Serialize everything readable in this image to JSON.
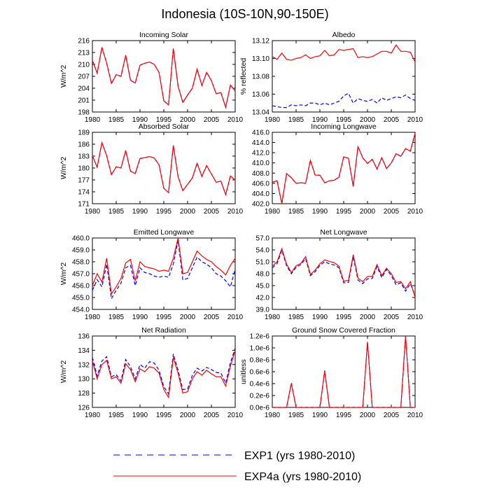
{
  "figure": {
    "title": "Indonesia (10S-10N,90-150E)",
    "legend": [
      {
        "label": "EXP1 (yrs 1980-2010)",
        "color": "#0000ff",
        "dash": true
      },
      {
        "label": "EXP4a (yrs 1980-2010)",
        "color": "#ff0000",
        "dash": false
      }
    ]
  },
  "chart_data": [
    {
      "type": "line",
      "title": "Incoming Solar",
      "ylabel": "W/m^2",
      "ylim": [
        198,
        216
      ],
      "yticks": [
        "198",
        "201",
        "204",
        "207",
        "210",
        "213",
        "216"
      ],
      "xlim": [
        1980,
        2010
      ],
      "xticks": [
        "1980",
        "1985",
        "1990",
        "1995",
        "2000",
        "2005",
        "2010"
      ],
      "x": [
        1980,
        1981,
        1982,
        1983,
        1984,
        1985,
        1986,
        1987,
        1988,
        1989,
        1990,
        1991,
        1992,
        1993,
        1994,
        1995,
        1996,
        1997,
        1998,
        1999,
        2000,
        2001,
        2002,
        2003,
        2004,
        2005,
        2006,
        2007,
        2008,
        2009,
        2010
      ],
      "series": [
        {
          "name": "EXP1",
          "values": [
            211.0,
            207.8,
            214.3,
            210.3,
            205.2,
            207.4,
            207.0,
            212.3,
            206.0,
            205.3,
            209.8,
            210.3,
            210.6,
            210.0,
            208.0,
            200.8,
            199.8,
            214.0,
            204.5,
            200.4,
            202.3,
            204.0,
            208.8,
            204.7,
            208.0,
            205.9,
            202.6,
            202.9,
            199.2,
            204.8,
            203.3
          ]
        },
        {
          "name": "EXP4a",
          "values": [
            211.0,
            207.8,
            214.3,
            210.3,
            205.2,
            207.4,
            207.0,
            212.3,
            206.0,
            205.3,
            209.8,
            210.3,
            210.6,
            210.0,
            208.0,
            200.8,
            199.8,
            214.0,
            204.5,
            200.4,
            202.3,
            204.0,
            208.8,
            204.7,
            208.0,
            205.9,
            202.6,
            202.9,
            199.2,
            204.8,
            203.3
          ]
        }
      ]
    },
    {
      "type": "line",
      "title": "Albedo",
      "ylabel": "% reflected",
      "ylim": [
        13.04,
        13.12
      ],
      "yticks": [
        "13.04",
        "13.06",
        "13.08",
        "13.10",
        "13.12"
      ],
      "xlim": [
        1980,
        2010
      ],
      "xticks": [
        "1980",
        "1985",
        "1990",
        "1995",
        "2000",
        "2005",
        "2010"
      ],
      "x": [
        1980,
        1981,
        1982,
        1983,
        1984,
        1985,
        1986,
        1987,
        1988,
        1989,
        1990,
        1991,
        1992,
        1993,
        1994,
        1995,
        1996,
        1997,
        1998,
        1999,
        2000,
        2001,
        2002,
        2003,
        2004,
        2005,
        2006,
        2007,
        2008,
        2009,
        2010
      ],
      "series": [
        {
          "name": "EXP1",
          "values": [
            13.047,
            13.046,
            13.045,
            13.045,
            13.048,
            13.047,
            13.048,
            13.047,
            13.05,
            13.05,
            13.048,
            13.05,
            13.048,
            13.05,
            13.052,
            13.058,
            13.061,
            13.05,
            13.055,
            13.053,
            13.052,
            13.054,
            13.05,
            13.056,
            13.053,
            13.055,
            13.057,
            13.056,
            13.059,
            13.055,
            13.053
          ]
        },
        {
          "name": "EXP4a",
          "values": [
            13.102,
            13.099,
            13.106,
            13.099,
            13.098,
            13.1,
            13.101,
            13.104,
            13.1,
            13.102,
            13.103,
            13.109,
            13.103,
            13.104,
            13.11,
            13.109,
            13.11,
            13.111,
            13.101,
            13.102,
            13.101,
            13.102,
            13.105,
            13.108,
            13.108,
            13.106,
            13.115,
            13.108,
            13.108,
            13.107,
            13.096
          ]
        }
      ]
    },
    {
      "type": "line",
      "title": "Absorbed Solar",
      "ylabel": "W/m^2",
      "ylim": [
        171,
        189
      ],
      "yticks": [
        "171",
        "174",
        "177",
        "180",
        "183",
        "186",
        "189"
      ],
      "xlim": [
        1980,
        2010
      ],
      "xticks": [
        "1980",
        "1985",
        "1990",
        "1995",
        "2000",
        "2005",
        "2010"
      ],
      "x": [
        1980,
        1981,
        1982,
        1983,
        1984,
        1985,
        1986,
        1987,
        1988,
        1989,
        1990,
        1991,
        1992,
        1993,
        1994,
        1995,
        1996,
        1997,
        1998,
        1999,
        2000,
        2001,
        2002,
        2003,
        2004,
        2005,
        2006,
        2007,
        2008,
        2009,
        2010
      ],
      "series": [
        {
          "name": "EXP1",
          "values": [
            183.1,
            180.2,
            186.4,
            183.1,
            178.3,
            180.3,
            180.0,
            184.4,
            179.2,
            178.6,
            182.4,
            182.6,
            182.9,
            182.5,
            180.8,
            174.9,
            173.8,
            185.7,
            177.8,
            174.3,
            175.9,
            177.5,
            181.2,
            177.9,
            180.6,
            178.5,
            176.4,
            176.7,
            173.3,
            178.0,
            176.9
          ]
        },
        {
          "name": "EXP4a",
          "values": [
            183.1,
            180.2,
            186.4,
            183.1,
            178.3,
            180.3,
            180.0,
            184.4,
            179.2,
            178.6,
            182.4,
            182.6,
            182.9,
            182.5,
            180.8,
            174.9,
            173.8,
            185.7,
            177.8,
            174.3,
            175.9,
            177.5,
            181.2,
            177.9,
            180.6,
            178.5,
            176.4,
            176.7,
            173.3,
            178.0,
            176.9
          ]
        }
      ]
    },
    {
      "type": "line",
      "title": "Incoming Longwave",
      "ylabel": "",
      "ylim": [
        402,
        416
      ],
      "yticks": [
        "402.0",
        "404.0",
        "406.0",
        "408.0",
        "410.0",
        "412.0",
        "414.0",
        "416.0"
      ],
      "xlim": [
        1980,
        2010
      ],
      "xticks": [
        "1980",
        "1985",
        "1990",
        "1995",
        "2000",
        "2005",
        "2010"
      ],
      "x": [
        1980,
        1981,
        1982,
        1983,
        1984,
        1985,
        1986,
        1987,
        1988,
        1989,
        1990,
        1991,
        1992,
        1993,
        1994,
        1995,
        1996,
        1997,
        1998,
        1999,
        2000,
        2001,
        2002,
        2003,
        2004,
        2005,
        2006,
        2007,
        2008,
        2009,
        2010
      ],
      "series": [
        {
          "name": "EXP1",
          "values": [
            406.2,
            406.5,
            402.0,
            407.9,
            407.1,
            406.0,
            406.1,
            406.0,
            410.5,
            407.6,
            407.6,
            406.1,
            406.5,
            406.6,
            407.2,
            411.2,
            410.9,
            405.4,
            413.2,
            411.0,
            409.9,
            410.7,
            408.8,
            411.0,
            408.9,
            410.0,
            411.8,
            411.3,
            412.8,
            412.3,
            415.8
          ]
        },
        {
          "name": "EXP4a",
          "values": [
            406.2,
            406.5,
            402.0,
            407.9,
            407.1,
            406.0,
            406.1,
            406.0,
            410.5,
            407.6,
            407.6,
            406.1,
            406.5,
            406.6,
            407.2,
            411.2,
            410.9,
            405.4,
            413.2,
            411.0,
            409.9,
            410.7,
            408.8,
            411.0,
            408.9,
            410.0,
            411.8,
            411.3,
            412.8,
            412.3,
            415.8
          ]
        }
      ]
    },
    {
      "type": "line",
      "title": "Emitted Longwave",
      "ylabel": "W/m^2",
      "ylim": [
        454,
        460
      ],
      "yticks": [
        "454.0",
        "455.0",
        "456.0",
        "457.0",
        "458.0",
        "459.0",
        "460.0"
      ],
      "xlim": [
        1980,
        2010
      ],
      "xticks": [
        "1980",
        "1985",
        "1990",
        "1995",
        "2000",
        "2005",
        "2010"
      ],
      "x": [
        1980,
        1981,
        1982,
        1983,
        1984,
        1985,
        1986,
        1987,
        1988,
        1989,
        1990,
        1991,
        1992,
        1993,
        1994,
        1995,
        1996,
        1997,
        1998,
        1999,
        2000,
        2001,
        2002,
        2003,
        2004,
        2005,
        2006,
        2007,
        2008,
        2009,
        2010
      ],
      "series": [
        {
          "name": "EXP1",
          "values": [
            455.6,
            456.5,
            455.9,
            457.8,
            454.9,
            455.6,
            456.2,
            457.5,
            457.7,
            456.0,
            457.5,
            457.1,
            457.0,
            456.8,
            456.7,
            456.8,
            456.7,
            457.8,
            459.8,
            456.5,
            456.6,
            457.5,
            458.4,
            458.0,
            457.8,
            457.5,
            457.0,
            456.8,
            456.4,
            455.9,
            457.4
          ]
        },
        {
          "name": "EXP4a",
          "values": [
            456.0,
            457.0,
            456.3,
            458.3,
            455.3,
            455.9,
            456.6,
            457.9,
            458.2,
            456.4,
            458.0,
            457.6,
            457.5,
            457.4,
            457.2,
            457.3,
            457.2,
            458.3,
            460.0,
            457.0,
            457.1,
            458.0,
            458.9,
            458.5,
            458.2,
            458.0,
            457.6,
            457.3,
            456.9,
            457.7,
            458.3
          ]
        }
      ]
    },
    {
      "type": "line",
      "title": "Net Longwave",
      "ylabel": "",
      "ylim": [
        39,
        57
      ],
      "yticks": [
        "39.0",
        "42.0",
        "45.0",
        "48.0",
        "51.0",
        "54.0",
        "57.0"
      ],
      "xlim": [
        1980,
        2010
      ],
      "xticks": [
        "1980",
        "1985",
        "1990",
        "1995",
        "2000",
        "2005",
        "2010"
      ],
      "x": [
        1980,
        1981,
        1982,
        1983,
        1984,
        1985,
        1986,
        1987,
        1988,
        1989,
        1990,
        1991,
        1992,
        1993,
        1994,
        1995,
        1996,
        1997,
        1998,
        1999,
        2000,
        2001,
        2002,
        2003,
        2004,
        2005,
        2006,
        2007,
        2008,
        2009,
        2010
      ],
      "series": [
        {
          "name": "EXP1",
          "values": [
            49.5,
            50.5,
            53.9,
            50.0,
            48.0,
            49.6,
            50.3,
            51.8,
            47.5,
            48.5,
            50.1,
            51.0,
            50.5,
            50.2,
            49.5,
            45.7,
            45.8,
            52.3,
            46.4,
            45.5,
            46.7,
            46.8,
            49.8,
            47.0,
            49.1,
            47.5,
            45.2,
            45.7,
            43.6,
            45.5,
            42.5
          ]
        },
        {
          "name": "EXP4a",
          "values": [
            49.9,
            51.0,
            54.3,
            50.4,
            48.3,
            50.0,
            50.6,
            52.3,
            47.8,
            48.9,
            50.5,
            51.5,
            51.1,
            50.8,
            49.9,
            46.1,
            46.3,
            52.8,
            46.9,
            46.0,
            47.3,
            47.3,
            50.3,
            47.5,
            49.4,
            48.0,
            45.8,
            46.0,
            44.2,
            46.0,
            42.0
          ]
        }
      ]
    },
    {
      "type": "line",
      "title": "Net Radiation",
      "ylabel": "W/m^2",
      "ylim": [
        126,
        136
      ],
      "yticks": [
        "126",
        "128",
        "130",
        "132",
        "134",
        "136"
      ],
      "xlim": [
        1980,
        2010
      ],
      "xticks": [
        "1980",
        "1985",
        "1990",
        "1995",
        "2000",
        "2005",
        "2010"
      ],
      "x": [
        1980,
        1981,
        1982,
        1983,
        1984,
        1985,
        1986,
        1987,
        1988,
        1989,
        1990,
        1991,
        1992,
        1993,
        1994,
        1995,
        1996,
        1997,
        1998,
        1999,
        2000,
        2001,
        2002,
        2003,
        2004,
        2005,
        2006,
        2007,
        2008,
        2009,
        2010
      ],
      "series": [
        {
          "name": "EXP1",
          "values": [
            133.0,
            130.4,
            132.5,
            133.1,
            130.3,
            130.6,
            129.7,
            132.7,
            131.7,
            130.0,
            132.0,
            131.5,
            132.4,
            132.2,
            131.2,
            128.9,
            127.9,
            133.5,
            131.2,
            128.5,
            128.6,
            130.5,
            131.5,
            131.1,
            131.6,
            131.3,
            130.9,
            130.8,
            129.4,
            132.3,
            134.3
          ]
        },
        {
          "name": "EXP4a",
          "values": [
            132.5,
            130.0,
            132.0,
            132.6,
            130.0,
            130.3,
            129.4,
            132.1,
            131.3,
            129.6,
            131.4,
            131.0,
            131.7,
            131.5,
            130.8,
            128.5,
            127.4,
            133.0,
            130.8,
            128.0,
            128.2,
            130.0,
            131.0,
            130.5,
            131.2,
            130.7,
            130.3,
            130.3,
            129.0,
            131.8,
            134.0
          ]
        }
      ]
    },
    {
      "type": "line",
      "title": "Ground Snow Covered Fraction",
      "ylabel": "unitless",
      "ylim": [
        0,
        1.2e-06
      ],
      "yticks": [
        "0.0e-6",
        "0.2e-6",
        "0.4e-6",
        "0.6e-6",
        "0.8e-6",
        "1.0e-6",
        "1.2e-6"
      ],
      "xlim": [
        1980,
        2010
      ],
      "xticks": [
        "1980",
        "1985",
        "1990",
        "1995",
        "2000",
        "2005",
        "2010"
      ],
      "x": [
        1980,
        1981,
        1982,
        1983,
        1984,
        1985,
        1986,
        1987,
        1988,
        1989,
        1990,
        1991,
        1992,
        1993,
        1994,
        1995,
        1996,
        1997,
        1998,
        1999,
        2000,
        2001,
        2002,
        2003,
        2004,
        2005,
        2006,
        2007,
        2008,
        2009,
        2010
      ],
      "series": [
        {
          "name": "EXP1",
          "values": [
            0,
            0,
            0,
            0,
            4.1e-07,
            0,
            0,
            0,
            0,
            0,
            0,
            6.2e-07,
            0,
            0,
            0,
            0,
            0,
            0,
            0,
            0,
            1.1e-06,
            0,
            0,
            0,
            0,
            0,
            0,
            0,
            1.2e-06,
            0,
            0
          ]
        },
        {
          "name": "EXP4a",
          "values": [
            0,
            0,
            0,
            0,
            4e-07,
            0,
            0,
            0,
            0,
            0,
            0,
            6.1e-07,
            0,
            0,
            0,
            0,
            0,
            0,
            0,
            0,
            1.1e-06,
            0,
            0,
            0,
            0,
            0,
            0,
            0,
            1.2e-06,
            0,
            0
          ]
        }
      ]
    }
  ]
}
